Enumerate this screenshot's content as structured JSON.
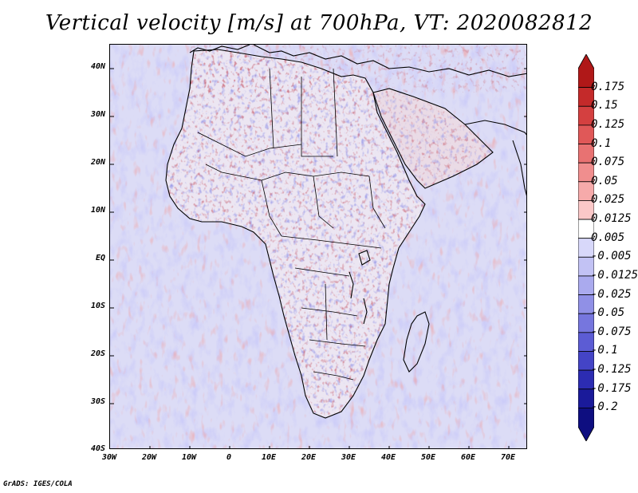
{
  "title": "Vertical velocity [m/s] at 700hPa, VT: 2020082812",
  "footer": "GrADS: IGES/COLA",
  "map": {
    "lat_labels": [
      "40N",
      "30N",
      "20N",
      "10N",
      "EQ",
      "10S",
      "20S",
      "30S",
      "40S"
    ],
    "lon_labels": [
      "30W",
      "20W",
      "10W",
      "0",
      "10E",
      "20E",
      "30E",
      "40E",
      "50E",
      "60E",
      "70E"
    ],
    "lon_range": [
      -30,
      75
    ],
    "lat_range": [
      -40,
      45
    ]
  },
  "colorbar": {
    "labels": [
      "0.175",
      "0.15",
      "0.125",
      "0.1",
      "0.075",
      "0.05",
      "0.025",
      "0.0125",
      "0.005",
      "-0.005",
      "-0.0125",
      "-0.025",
      "-0.05",
      "-0.075",
      "-0.1",
      "-0.125",
      "-0.175",
      "-0.2"
    ],
    "colors": [
      "#b01818",
      "#c42a2a",
      "#d44040",
      "#e05858",
      "#e87272",
      "#f08e8e",
      "#f6aaaa",
      "#fbc8c8",
      "#ffffff",
      "#d8d8fa",
      "#c2c2f4",
      "#aaaaee",
      "#9090e6",
      "#7676de",
      "#5c5cd4",
      "#4444c6",
      "#2c2cb2",
      "#1a1a9a",
      "#0e0e80"
    ]
  },
  "colors": {
    "coast": "#000000",
    "background": "#ffffff"
  }
}
